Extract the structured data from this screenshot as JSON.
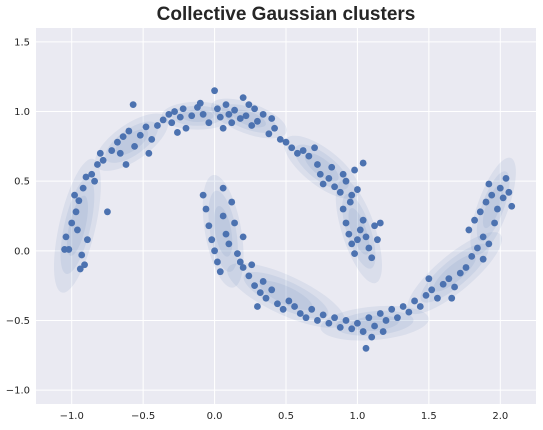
{
  "chart_data": {
    "type": "scatter",
    "title": "Collective Gaussian clusters",
    "xlabel": "",
    "ylabel": "",
    "xlim": [
      -1.25,
      2.25
    ],
    "ylim": [
      -1.1,
      1.6
    ],
    "xticks": [
      -1.0,
      -0.5,
      0.0,
      0.5,
      1.0,
      1.5,
      2.0
    ],
    "xtick_labels": [
      "−1.0",
      "−0.5",
      "0.0",
      "0.5",
      "1.0",
      "1.5",
      "2.0"
    ],
    "yticks": [
      -1.0,
      -0.5,
      0.0,
      0.5,
      1.0,
      1.5
    ],
    "ytick_labels": [
      "−1.0",
      "−0.5",
      "0.0",
      "0.5",
      "1.0",
      "1.5"
    ],
    "grid": true,
    "legend": "none",
    "colors": {
      "background": "#eaeaf2",
      "grid": "#ffffff",
      "points": "#4c72b0",
      "ellipses": "#4c72b0"
    },
    "series": [
      {
        "points": [
          [
            -1.02,
            0.01
          ],
          [
            -1.04,
            0.1
          ],
          [
            -1.0,
            0.2
          ],
          [
            -0.97,
            0.28
          ],
          [
            -0.95,
            0.36
          ],
          [
            -0.92,
            0.45
          ],
          [
            -0.9,
            0.53
          ],
          [
            -0.98,
            0.4
          ],
          [
            -0.96,
            0.15
          ],
          [
            -0.93,
            -0.03
          ],
          [
            -0.91,
            -0.1
          ],
          [
            -0.94,
            -0.13
          ],
          [
            -1.05,
            0.01
          ],
          [
            -0.89,
            0.08
          ],
          [
            -0.86,
            0.55
          ],
          [
            -0.82,
            0.62
          ],
          [
            -0.78,
            0.65
          ],
          [
            -0.75,
            0.28
          ],
          [
            -0.84,
            0.5
          ],
          [
            -0.8,
            0.7
          ],
          [
            -0.72,
            0.72
          ],
          [
            -0.68,
            0.78
          ],
          [
            -0.64,
            0.82
          ],
          [
            -0.6,
            0.86
          ],
          [
            -0.56,
            0.75
          ],
          [
            -0.52,
            0.83
          ],
          [
            -0.48,
            0.89
          ],
          [
            -0.46,
            0.7
          ],
          [
            -0.44,
            0.8
          ],
          [
            -0.4,
            0.9
          ],
          [
            -0.57,
            1.05
          ],
          [
            -0.66,
            0.7
          ],
          [
            -0.62,
            0.62
          ],
          [
            -0.36,
            0.94
          ],
          [
            -0.32,
            0.98
          ],
          [
            -0.28,
            1.0
          ],
          [
            -0.24,
            0.96
          ],
          [
            -0.2,
            0.88
          ],
          [
            -0.16,
            0.97
          ],
          [
            -0.12,
            1.03
          ],
          [
            -0.08,
            0.98
          ],
          [
            -0.04,
            0.92
          ],
          [
            -0.3,
            0.92
          ],
          [
            -0.22,
            1.02
          ],
          [
            -0.1,
            1.06
          ],
          [
            -0.26,
            0.85
          ],
          [
            0.0,
            1.15
          ],
          [
            0.02,
            1.02
          ],
          [
            0.04,
            0.96
          ],
          [
            0.06,
            0.88
          ],
          [
            0.08,
            1.05
          ],
          [
            0.1,
            0.98
          ],
          [
            0.12,
            0.92
          ],
          [
            0.14,
            1.01
          ],
          [
            0.18,
            0.95
          ],
          [
            0.22,
            0.97
          ],
          [
            0.24,
            1.05
          ],
          [
            0.26,
            0.9
          ],
          [
            0.3,
            0.93
          ],
          [
            0.34,
            0.98
          ],
          [
            0.38,
            0.84
          ],
          [
            0.42,
            0.88
          ],
          [
            0.46,
            0.8
          ],
          [
            0.4,
            0.95
          ],
          [
            0.2,
            1.1
          ],
          [
            0.28,
            1.02
          ],
          [
            0.5,
            0.78
          ],
          [
            0.54,
            0.74
          ],
          [
            0.58,
            0.7
          ],
          [
            0.62,
            0.72
          ],
          [
            0.66,
            0.68
          ],
          [
            0.7,
            0.74
          ],
          [
            0.72,
            0.62
          ],
          [
            0.74,
            0.55
          ],
          [
            0.76,
            0.48
          ],
          [
            0.8,
            0.52
          ],
          [
            0.84,
            0.46
          ],
          [
            0.88,
            0.42
          ],
          [
            0.92,
            0.5
          ],
          [
            0.96,
            0.4
          ],
          [
            1.0,
            0.44
          ],
          [
            0.9,
            0.55
          ],
          [
            0.82,
            0.6
          ],
          [
            1.04,
            0.63
          ],
          [
            0.98,
            0.58
          ],
          [
            0.9,
            0.3
          ],
          [
            0.92,
            0.2
          ],
          [
            0.94,
            0.12
          ],
          [
            0.96,
            0.05
          ],
          [
            0.98,
            -0.02
          ],
          [
            1.0,
            0.08
          ],
          [
            1.02,
            0.15
          ],
          [
            1.04,
            0.22
          ],
          [
            1.06,
            0.1
          ],
          [
            1.08,
            0.02
          ],
          [
            1.1,
            -0.05
          ],
          [
            1.12,
            0.18
          ],
          [
            1.14,
            0.08
          ],
          [
            1.16,
            0.2
          ],
          [
            0.95,
            0.35
          ],
          [
            -0.08,
            0.4
          ],
          [
            -0.06,
            0.3
          ],
          [
            -0.04,
            0.18
          ],
          [
            -0.02,
            0.08
          ],
          [
            0.0,
            0.0
          ],
          [
            0.02,
            -0.08
          ],
          [
            0.04,
            -0.15
          ],
          [
            0.06,
            0.25
          ],
          [
            0.08,
            0.12
          ],
          [
            0.1,
            0.05
          ],
          [
            0.12,
            0.35
          ],
          [
            0.14,
            0.2
          ],
          [
            0.16,
            -0.02
          ],
          [
            0.18,
            -0.08
          ],
          [
            0.06,
            0.45
          ],
          [
            0.2,
            0.1
          ],
          [
            0.2,
            -0.12
          ],
          [
            0.24,
            -0.18
          ],
          [
            0.28,
            -0.25
          ],
          [
            0.32,
            -0.3
          ],
          [
            0.36,
            -0.34
          ],
          [
            0.4,
            -0.28
          ],
          [
            0.44,
            -0.38
          ],
          [
            0.48,
            -0.42
          ],
          [
            0.52,
            -0.36
          ],
          [
            0.56,
            -0.4
          ],
          [
            0.6,
            -0.45
          ],
          [
            0.64,
            -0.48
          ],
          [
            0.68,
            -0.42
          ],
          [
            0.72,
            -0.5
          ],
          [
            0.76,
            -0.46
          ],
          [
            0.8,
            -0.52
          ],
          [
            0.84,
            -0.48
          ],
          [
            0.3,
            -0.4
          ],
          [
            0.26,
            -0.1
          ],
          [
            0.34,
            -0.22
          ],
          [
            0.88,
            -0.55
          ],
          [
            0.92,
            -0.5
          ],
          [
            0.96,
            -0.56
          ],
          [
            1.0,
            -0.52
          ],
          [
            1.04,
            -0.58
          ],
          [
            1.06,
            -0.7
          ],
          [
            1.08,
            -0.48
          ],
          [
            1.12,
            -0.54
          ],
          [
            1.16,
            -0.45
          ],
          [
            1.2,
            -0.5
          ],
          [
            1.24,
            -0.42
          ],
          [
            1.28,
            -0.48
          ],
          [
            1.32,
            -0.4
          ],
          [
            1.36,
            -0.44
          ],
          [
            1.4,
            -0.36
          ],
          [
            1.44,
            -0.4
          ],
          [
            1.1,
            -0.62
          ],
          [
            1.18,
            -0.58
          ],
          [
            1.48,
            -0.32
          ],
          [
            1.52,
            -0.28
          ],
          [
            1.56,
            -0.34
          ],
          [
            1.6,
            -0.24
          ],
          [
            1.64,
            -0.2
          ],
          [
            1.68,
            -0.26
          ],
          [
            1.72,
            -0.16
          ],
          [
            1.76,
            -0.12
          ],
          [
            1.8,
            -0.04
          ],
          [
            1.84,
            0.02
          ],
          [
            1.88,
            -0.06
          ],
          [
            1.92,
            0.05
          ],
          [
            1.5,
            -0.2
          ],
          [
            1.66,
            -0.34
          ],
          [
            1.78,
            0.15
          ],
          [
            1.82,
            0.22
          ],
          [
            1.86,
            0.28
          ],
          [
            1.9,
            0.35
          ],
          [
            1.94,
            0.4
          ],
          [
            1.96,
            0.2
          ],
          [
            1.98,
            0.3
          ],
          [
            2.0,
            0.45
          ],
          [
            2.02,
            0.38
          ],
          [
            2.04,
            0.52
          ],
          [
            2.06,
            0.42
          ],
          [
            1.92,
            0.48
          ],
          [
            1.88,
            0.1
          ],
          [
            2.08,
            0.32
          ]
        ]
      }
    ],
    "ellipses": [
      {
        "center": [
          -0.96,
          0.18
        ],
        "radii": [
          0.48,
          0.13
        ],
        "angle_deg": 77
      },
      {
        "center": [
          -0.58,
          0.78
        ],
        "radii": [
          0.3,
          0.13
        ],
        "angle_deg": 35
      },
      {
        "center": [
          -0.12,
          0.97
        ],
        "radii": [
          0.25,
          0.1
        ],
        "angle_deg": 0
      },
      {
        "center": [
          0.24,
          0.95
        ],
        "radii": [
          0.28,
          0.11
        ],
        "angle_deg": -20
      },
      {
        "center": [
          0.75,
          0.6
        ],
        "radii": [
          0.32,
          0.13
        ],
        "angle_deg": -38
      },
      {
        "center": [
          1.01,
          0.14
        ],
        "radii": [
          0.38,
          0.12
        ],
        "angle_deg": -72
      },
      {
        "center": [
          0.06,
          0.14
        ],
        "radii": [
          0.4,
          0.13
        ],
        "angle_deg": -80
      },
      {
        "center": [
          0.5,
          -0.32
        ],
        "radii": [
          0.45,
          0.14
        ],
        "angle_deg": -25
      },
      {
        "center": [
          1.12,
          -0.52
        ],
        "radii": [
          0.38,
          0.12
        ],
        "angle_deg": 5
      },
      {
        "center": [
          1.68,
          -0.16
        ],
        "radii": [
          0.42,
          0.13
        ],
        "angle_deg": 40
      },
      {
        "center": [
          1.95,
          0.32
        ],
        "radii": [
          0.36,
          0.11
        ],
        "angle_deg": 70
      }
    ]
  }
}
